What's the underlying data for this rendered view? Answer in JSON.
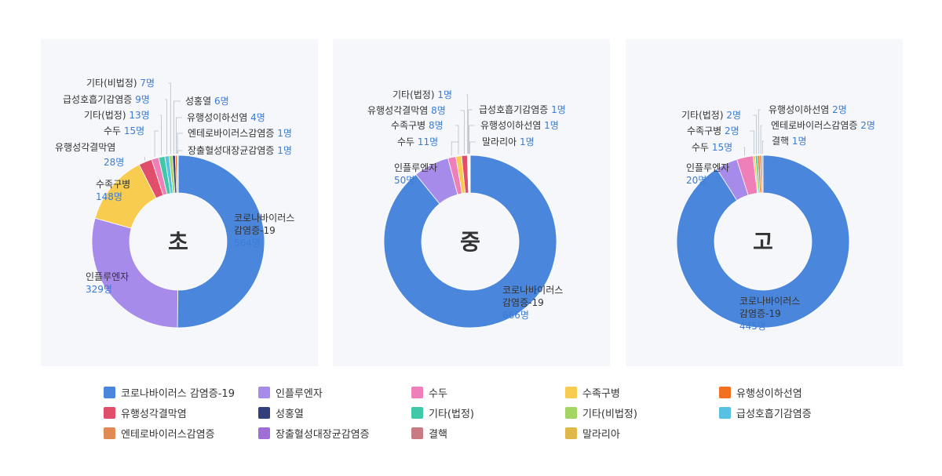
{
  "chart_data": [
    {
      "type": "donut",
      "center_label": "초",
      "slices": [
        {
          "name": "코로나바이러스 감염증-19",
          "value": 564,
          "color": "#4a87dc",
          "label": [
            "코로나바이러스",
            "감염증-19"
          ],
          "value_text": "564명"
        },
        {
          "name": "인플루엔자",
          "value": 329,
          "color": "#a78beb",
          "label": [
            "인플루엔자"
          ],
          "value_text": "329명"
        },
        {
          "name": "수족구병",
          "value": 148,
          "color": "#f8cc4f",
          "label": [
            "수족구병"
          ],
          "value_text": "148명"
        },
        {
          "name": "유행성각결막염",
          "value": 28,
          "color": "#e04e6b",
          "label": [
            "유행성각결막염"
          ],
          "value_text": "28명"
        },
        {
          "name": "수두",
          "value": 15,
          "color": "#ee7fb8",
          "label": [
            "수두"
          ],
          "value_text": "15명"
        },
        {
          "name": "기타(법정)",
          "value": 13,
          "color": "#3fc9a8",
          "label": [
            "기타(법정)"
          ],
          "value_text": "13명"
        },
        {
          "name": "급성호흡기감염증",
          "value": 9,
          "color": "#58c0e0",
          "label": [
            "급성호흡기감염증"
          ],
          "value_text": "9명"
        },
        {
          "name": "기타(비법정)",
          "value": 7,
          "color": "#a4d463",
          "label": [
            "기타(비법정)"
          ],
          "value_text": "7명"
        },
        {
          "name": "성홍열",
          "value": 6,
          "color": "#333f7a",
          "label": [
            "성홍열"
          ],
          "value_text": "6명"
        },
        {
          "name": "유행성이하선염",
          "value": 4,
          "color": "#f36f21",
          "label": [
            "유행성이하선염"
          ],
          "value_text": "4명"
        },
        {
          "name": "엔테로바이러스감염증",
          "value": 1,
          "color": "#e08a55",
          "label": [
            "엔테로바이러스감염증"
          ],
          "value_text": "1명"
        },
        {
          "name": "장출혈성대장균감염증",
          "value": 1,
          "color": "#a06fd6",
          "label": [
            "장출혈성대장균감염증"
          ],
          "value_text": "1명"
        }
      ]
    },
    {
      "type": "donut",
      "center_label": "중",
      "slices": [
        {
          "name": "코로나바이러스 감염증-19",
          "value": 666,
          "color": "#4a87dc",
          "label": [
            "코로나바이러스",
            "감염증-19"
          ],
          "value_text": "666명"
        },
        {
          "name": "인플루엔자",
          "value": 50,
          "color": "#a78beb",
          "label": [
            "인플루엔자"
          ],
          "value_text": "50명"
        },
        {
          "name": "수두",
          "value": 11,
          "color": "#ee7fb8",
          "label": [
            "수두"
          ],
          "value_text": "11명"
        },
        {
          "name": "수족구병",
          "value": 8,
          "color": "#f8cc4f",
          "label": [
            "수족구병"
          ],
          "value_text": "8명"
        },
        {
          "name": "유행성각결막염",
          "value": 8,
          "color": "#e04e6b",
          "label": [
            "유행성각결막염"
          ],
          "value_text": "8명"
        },
        {
          "name": "기타(법정)",
          "value": 1,
          "color": "#3fc9a8",
          "label": [
            "기타(법정)"
          ],
          "value_text": "1명"
        },
        {
          "name": "급성호흡기감염증",
          "value": 1,
          "color": "#58c0e0",
          "label": [
            "급성호흡기감염증"
          ],
          "value_text": "1명"
        },
        {
          "name": "유행성이하선염",
          "value": 1,
          "color": "#f36f21",
          "label": [
            "유행성이하선염"
          ],
          "value_text": "1명"
        },
        {
          "name": "말라리아",
          "value": 1,
          "color": "#e0b84a",
          "label": [
            "말라리아"
          ],
          "value_text": "1명"
        }
      ]
    },
    {
      "type": "donut",
      "center_label": "고",
      "slices": [
        {
          "name": "코로나바이러스 감염증-19",
          "value": 445,
          "color": "#4a87dc",
          "label": [
            "코로나바이러스",
            "감염증-19"
          ],
          "value_text": "445명"
        },
        {
          "name": "인플루엔자",
          "value": 20,
          "color": "#a78beb",
          "label": [
            "인플루엔자"
          ],
          "value_text": "20명"
        },
        {
          "name": "수두",
          "value": 15,
          "color": "#ee7fb8",
          "label": [
            "수두"
          ],
          "value_text": "15명"
        },
        {
          "name": "수족구병",
          "value": 2,
          "color": "#f8cc4f",
          "label": [
            "수족구병"
          ],
          "value_text": "2명"
        },
        {
          "name": "기타(법정)",
          "value": 2,
          "color": "#3fc9a8",
          "label": [
            "기타(법정)"
          ],
          "value_text": "2명"
        },
        {
          "name": "유행성이하선염",
          "value": 2,
          "color": "#f36f21",
          "label": [
            "유행성이하선염"
          ],
          "value_text": "2명"
        },
        {
          "name": "엔테로바이러스감염증",
          "value": 2,
          "color": "#e08a55",
          "label": [
            "엔테로바이러스감염증"
          ],
          "value_text": "2명"
        },
        {
          "name": "결핵",
          "value": 1,
          "color": "#c97b84",
          "label": [
            "결핵"
          ],
          "value_text": "1명"
        }
      ]
    }
  ],
  "legend": [
    {
      "label": "코로나바이러스 감염증-19",
      "color": "#4a87dc"
    },
    {
      "label": "인플루엔자",
      "color": "#a78beb"
    },
    {
      "label": "수두",
      "color": "#ee7fb8"
    },
    {
      "label": "수족구병",
      "color": "#f8cc4f"
    },
    {
      "label": "유행성이하선염",
      "color": "#f36f21"
    },
    {
      "label": "유행성각결막염",
      "color": "#e04e6b"
    },
    {
      "label": "성홍열",
      "color": "#333f7a"
    },
    {
      "label": "기타(법정)",
      "color": "#3fc9a8"
    },
    {
      "label": "기타(비법정)",
      "color": "#a4d463"
    },
    {
      "label": "급성호흡기감염증",
      "color": "#58c0e0"
    },
    {
      "label": "엔테로바이러스감염증",
      "color": "#e08a55"
    },
    {
      "label": "장출혈성대장균감염증",
      "color": "#a06fd6"
    },
    {
      "label": "결핵",
      "color": "#c97b84"
    },
    {
      "label": "말라리아",
      "color": "#e0b84a"
    }
  ]
}
